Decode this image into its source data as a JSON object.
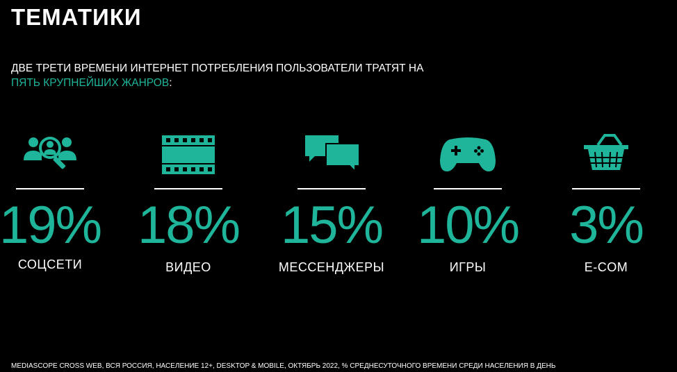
{
  "slide": {
    "title": "ТЕМАТИКИ",
    "subtitle_line1": "ДВЕ ТРЕТИ ВРЕМЕНИ ИНТЕРНЕТ ПОТРЕБЛЕНИЯ ПОЛЬЗОВАТЕЛИ ТРАТЯТ НА",
    "subtitle_accent": "ПЯТЬ КРУПНЕЙШИХ ЖАНРОВ",
    "subtitle_colon": ":",
    "accent_color": "#1fb59b",
    "categories": [
      {
        "percent": "19%",
        "label": "СОЦСЕТИ",
        "icon": "social-users-search-icon"
      },
      {
        "percent": "18%",
        "label": "ВИДЕО",
        "icon": "film-strip-icon"
      },
      {
        "percent": "15%",
        "label": "МЕССЕНДЖЕРЫ",
        "icon": "chat-bubbles-icon"
      },
      {
        "percent": "10%",
        "label": "ИГРЫ",
        "icon": "gamepad-icon"
      },
      {
        "percent": "3%",
        "label": "E-COM",
        "icon": "shopping-basket-icon"
      }
    ],
    "footnote": "MEDIASCOPE CROSS WEB, ВСЯ РОССИЯ, НАСЕЛЕНИЕ 12+, DESKTOP & MOBILE, ОКТЯБРЬ 2022, % СРЕДНЕСУТОЧНОГО ВРЕМЕНИ СРЕДИ НАСЕЛЕНИЯ В ДЕНЬ"
  }
}
